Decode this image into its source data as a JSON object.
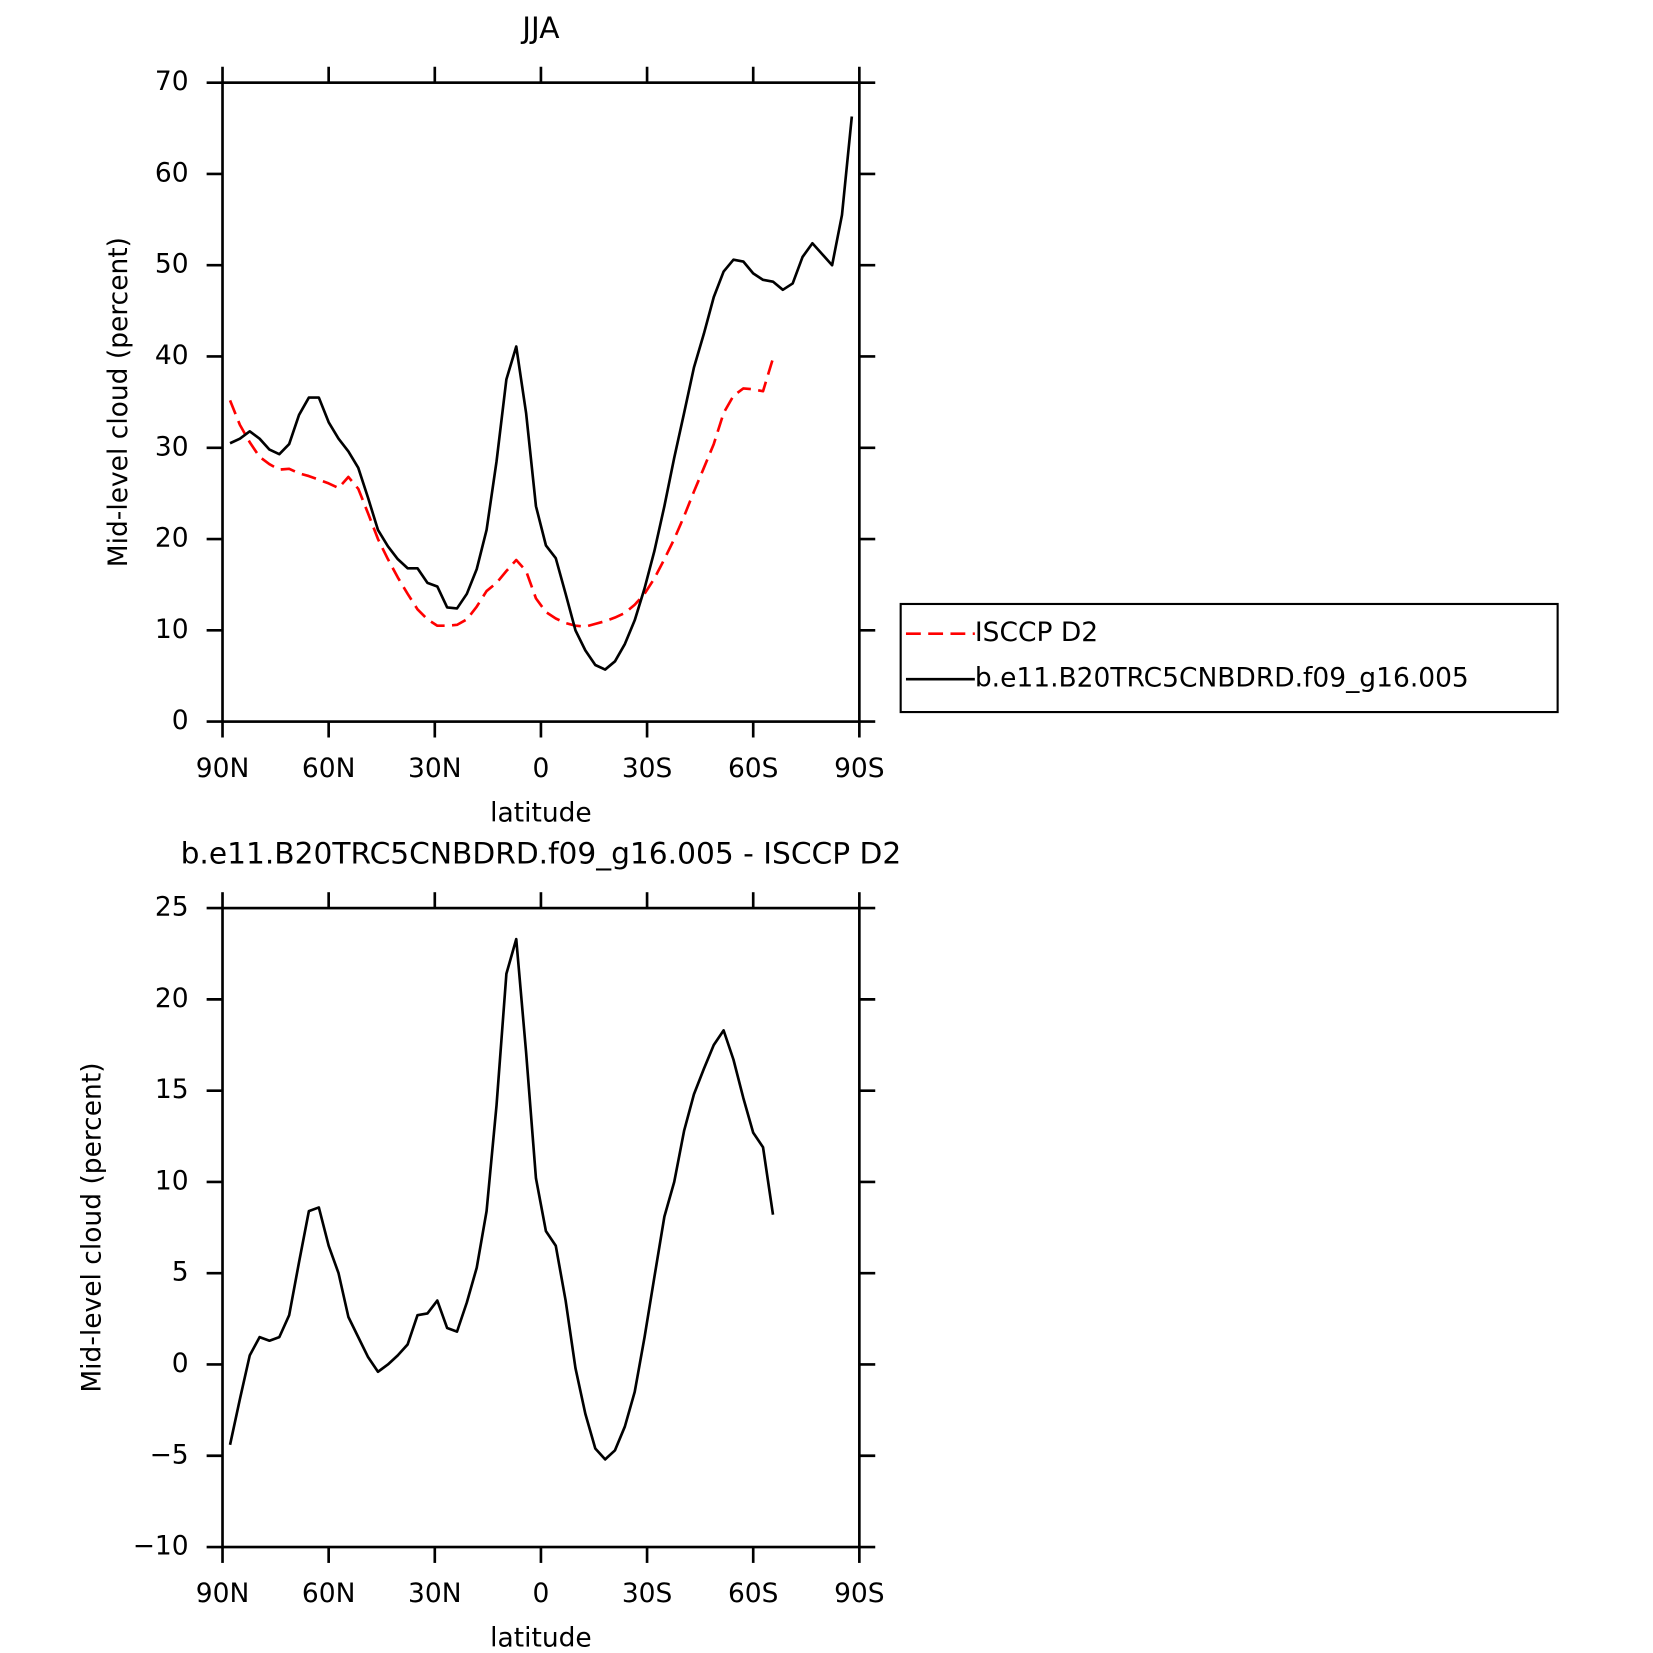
{
  "chart_data": [
    {
      "type": "line",
      "title": "JJA",
      "xlabel": "latitude",
      "ylabel": "Mid-level cloud (percent)",
      "x": [
        87.86,
        85.1,
        82.31,
        79.53,
        76.74,
        73.95,
        71.16,
        68.37,
        65.58,
        62.79,
        60,
        57.21,
        54.42,
        51.63,
        48.84,
        46.05,
        43.26,
        40.47,
        37.67,
        34.88,
        32.09,
        29.3,
        26.51,
        23.72,
        20.93,
        18.14,
        15.35,
        12.56,
        9.77,
        6.98,
        4.19,
        1.4,
        -1.4,
        -4.19,
        -6.98,
        -9.77,
        -12.56,
        -15.35,
        -18.14,
        -20.93,
        -23.72,
        -26.51,
        -29.3,
        -32.09,
        -34.88,
        -37.67,
        -40.47,
        -43.26,
        -46.05,
        -48.84,
        -51.63,
        -54.42,
        -57.21,
        -60,
        -62.79,
        -65.58,
        -68.37,
        -71.16,
        -73.95,
        -76.74,
        -79.53,
        -82.31,
        -85.1,
        -87.86
      ],
      "series": [
        {
          "name": "ISCCP D2",
          "color": "#ff0000",
          "linestyle": "dashed",
          "values": [
            35.2,
            32.5,
            30.6,
            29,
            28.2,
            27.6,
            27.7,
            27.2,
            26.9,
            26.5,
            26.1,
            25.6,
            26.8,
            25.5,
            22.8,
            20,
            17.8,
            15.8,
            14,
            12.3,
            11.2,
            10.5,
            10.5,
            10.6,
            11.2,
            12.6,
            14.3,
            15.2,
            16.5,
            17.7,
            16.5,
            13.5,
            12,
            11.3,
            10.8,
            10.5,
            10.4,
            10.7,
            11,
            11.4,
            11.9,
            12.8,
            14,
            15.7,
            17.8,
            20,
            22.5,
            25.2,
            27.8,
            30.4,
            33.8,
            35.7,
            36.5,
            36.4,
            36.2,
            39.8,
            null,
            null,
            null,
            null,
            null,
            null,
            null,
            null
          ]
        },
        {
          "name": "b.e11.B20TRC5CNBDRD.f09_g16.005",
          "color": "#000000",
          "linestyle": "solid",
          "values": [
            30.5,
            31,
            31.8,
            31,
            29.8,
            29.3,
            30.4,
            33.6,
            35.5,
            35.5,
            32.8,
            31,
            29.6,
            27.8,
            24.5,
            21,
            19.2,
            17.8,
            16.8,
            16.8,
            15.2,
            14.8,
            12.5,
            12.4,
            14,
            16.7,
            21,
            28.5,
            37.5,
            41.1,
            33.8,
            23.6,
            19.3,
            17.9,
            14,
            10,
            7.8,
            6.2,
            5.7,
            6.6,
            8.5,
            11.1,
            14.6,
            18.7,
            23.6,
            28.9,
            33.8,
            38.8,
            42.5,
            46.5,
            49.3,
            50.6,
            50.4,
            49.1,
            48.4,
            48.2,
            47.3,
            48,
            50.9,
            52.4,
            51.2,
            50,
            55.5,
            66.3
          ]
        }
      ],
      "xlim": [
        90,
        -90
      ],
      "xticks": [
        {
          "value": 90,
          "label": "90N"
        },
        {
          "value": 60,
          "label": "60N"
        },
        {
          "value": 30,
          "label": "30N"
        },
        0,
        {
          "value": -30,
          "label": "30S"
        },
        {
          "value": -60,
          "label": "60S"
        },
        {
          "value": -90,
          "label": "90S"
        }
      ],
      "ylim": [
        0,
        70
      ],
      "yticks": [
        0,
        10,
        20,
        30,
        40,
        50,
        60,
        70
      ],
      "legend": "outside-right"
    },
    {
      "type": "line",
      "title": "b.e11.B20TRC5CNBDRD.f09_g16.005 - ISCCP D2",
      "xlabel": "latitude",
      "ylabel": "Mid-level cloud (percent)",
      "x": [
        87.86,
        85.1,
        82.31,
        79.53,
        76.74,
        73.95,
        71.16,
        68.37,
        65.58,
        62.79,
        60,
        57.21,
        54.42,
        51.63,
        48.84,
        46.05,
        43.26,
        40.47,
        37.67,
        34.88,
        32.09,
        29.3,
        26.51,
        23.72,
        20.93,
        18.14,
        15.35,
        12.56,
        9.77,
        6.98,
        4.19,
        1.4,
        -1.4,
        -4.19,
        -6.98,
        -9.77,
        -12.56,
        -15.35,
        -18.14,
        -20.93,
        -23.72,
        -26.51,
        -29.3,
        -32.09,
        -34.88,
        -37.67,
        -40.47,
        -43.26,
        -46.05,
        -48.84,
        -51.63,
        -54.42,
        -57.21,
        -60,
        -62.79,
        -65.58,
        -68.37,
        -71.16,
        -73.95,
        -76.74,
        -79.53,
        -82.31,
        -85.1,
        -87.86
      ],
      "values": [
        -4.4,
        -1.9,
        0.5,
        1.5,
        1.3,
        1.5,
        2.7,
        5.6,
        8.4,
        8.6,
        6.5,
        5,
        2.6,
        1.5,
        0.4,
        -0.4,
        0,
        0.5,
        1.1,
        2.7,
        2.8,
        3.5,
        2,
        1.8,
        3.4,
        5.3,
        8.4,
        14.2,
        21.4,
        23.3,
        17.1,
        10.2,
        7.3,
        6.5,
        3.5,
        -0.2,
        -2.7,
        -4.6,
        -5.2,
        -4.7,
        -3.4,
        -1.5,
        1.5,
        4.8,
        8.1,
        10,
        12.8,
        14.8,
        16.2,
        17.5,
        18.3,
        16.7,
        14.6,
        12.7,
        11.9,
        8.2,
        null,
        null,
        null,
        null,
        null,
        null,
        null,
        null
      ],
      "color": "#000000",
      "linestyle": "solid",
      "xlim": [
        90,
        -90
      ],
      "xticks": [
        {
          "value": 90,
          "label": "90N"
        },
        {
          "value": 60,
          "label": "60N"
        },
        {
          "value": 30,
          "label": "30N"
        },
        0,
        {
          "value": -30,
          "label": "30S"
        },
        {
          "value": -60,
          "label": "60S"
        },
        {
          "value": -90,
          "label": "90S"
        }
      ],
      "ylim": [
        -10,
        25
      ],
      "yticks": [
        {
          "value": -10,
          "label": "−10"
        },
        {
          "value": -5,
          "label": "−5"
        },
        0,
        5,
        10,
        15,
        20,
        25
      ]
    }
  ]
}
